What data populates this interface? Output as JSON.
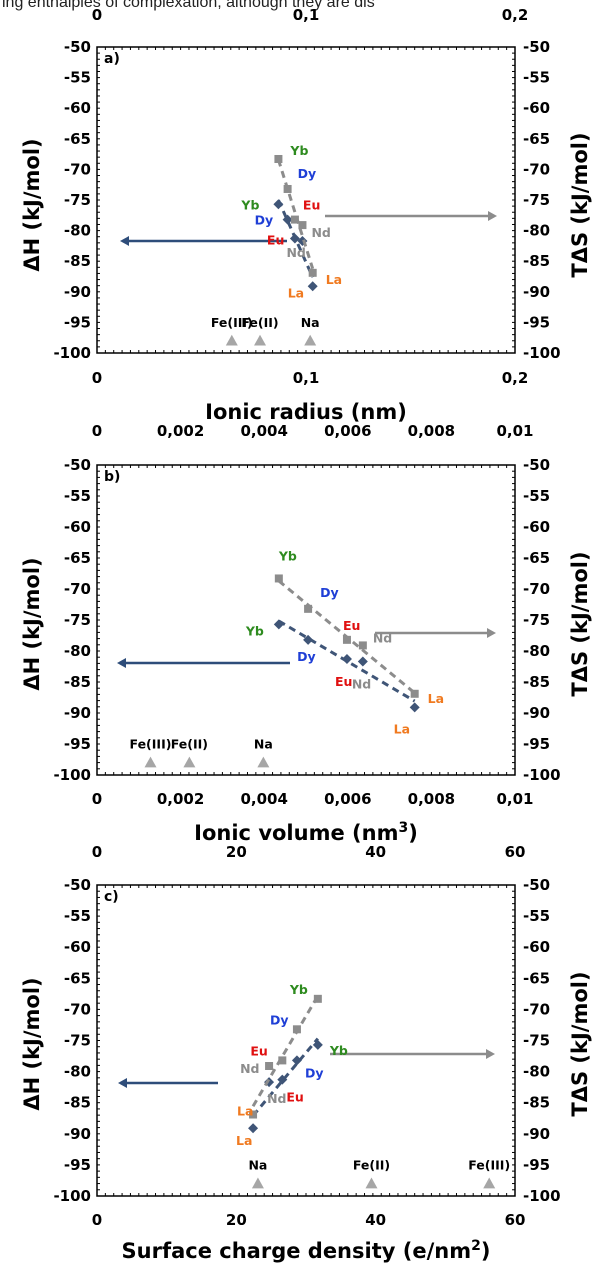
{
  "top_text": "ing enthalpies of complexation, although they are dis",
  "colors": {
    "dH_series": "#3f5577",
    "TdS_series": "#8c8c8c",
    "ion_markers": "#a6a6a6",
    "arrow_left": "#2e4d7a",
    "arrow_right": "#8c8c8c",
    "label_Yb": "#2e8b1f",
    "label_Dy": "#1f3fd6",
    "label_Eu": "#e01010",
    "label_Nd": "#8c8c8c",
    "label_La": "#f07a20",
    "label_other": "#000000"
  },
  "chart_data": [
    {
      "type": "scatter",
      "panel_label": "a)",
      "xlabel": "Ionic radius (nm)",
      "ylabel_left": "ΔH (kJ/mol)",
      "ylabel_right": "TΔS (kJ/mol)",
      "xlim": [
        0,
        0.2
      ],
      "ylim": [
        -100,
        -50
      ],
      "x_ticks": [
        "0",
        "0,1",
        "0,2"
      ],
      "x_top_ticks": [
        "0",
        "0,1",
        "0,2"
      ],
      "y_ticks": [
        "-50",
        "-55",
        "-60",
        "-65",
        "-70",
        "-75",
        "-80",
        "-85",
        "-90",
        "-95",
        "-100"
      ],
      "series": [
        {
          "name": "ΔH",
          "points": [
            {
              "label": "Yb",
              "x": 0.0868,
              "y": -75.7
            },
            {
              "label": "Dy",
              "x": 0.0912,
              "y": -78.2
            },
            {
              "label": "Eu",
              "x": 0.0947,
              "y": -81.3
            },
            {
              "label": "Nd",
              "x": 0.0983,
              "y": -81.7
            },
            {
              "label": "La",
              "x": 0.1032,
              "y": -89.1
            }
          ]
        },
        {
          "name": "TΔS",
          "points": [
            {
              "label": "Yb",
              "x": 0.0868,
              "y": -68.3
            },
            {
              "label": "Dy",
              "x": 0.0912,
              "y": -73.2
            },
            {
              "label": "Eu",
              "x": 0.0947,
              "y": -78.2
            },
            {
              "label": "Nd",
              "x": 0.0983,
              "y": -79.1
            },
            {
              "label": "La",
              "x": 0.1032,
              "y": -86.9
            }
          ]
        }
      ],
      "reference_ions": [
        {
          "label": "Fe(III)",
          "x": 0.0645,
          "y": -98
        },
        {
          "label": "Fe(II)",
          "x": 0.078,
          "y": -98
        },
        {
          "label": "Na",
          "x": 0.102,
          "y": -98
        }
      ]
    },
    {
      "type": "scatter",
      "panel_label": "b)",
      "xlabel": "Ionic volume (nm³)",
      "ylabel_left": "ΔH (kJ/mol)",
      "ylabel_right": "TΔS (kJ/mol)",
      "xlim": [
        0,
        0.01
      ],
      "ylim": [
        -100,
        -50
      ],
      "x_ticks": [
        "0",
        "0,002",
        "0,004",
        "0,006",
        "0,008",
        "0,01"
      ],
      "x_top_ticks": [
        "0",
        "0,002",
        "0,004",
        "0,006",
        "0,008",
        "0,01"
      ],
      "y_ticks": [
        "-50",
        "-55",
        "-60",
        "-65",
        "-70",
        "-75",
        "-80",
        "-85",
        "-90",
        "-95",
        "-100"
      ],
      "series": [
        {
          "name": "ΔH",
          "points": [
            {
              "label": "Yb",
              "x": 0.00435,
              "y": -75.7
            },
            {
              "label": "Dy",
              "x": 0.00505,
              "y": -78.2
            },
            {
              "label": "Eu",
              "x": 0.00598,
              "y": -81.3
            },
            {
              "label": "Nd",
              "x": 0.00636,
              "y": -81.7
            },
            {
              "label": "La",
              "x": 0.0076,
              "y": -89.1
            }
          ]
        },
        {
          "name": "TΔS",
          "points": [
            {
              "label": "Yb",
              "x": 0.00435,
              "y": -68.3
            },
            {
              "label": "Dy",
              "x": 0.00505,
              "y": -73.2
            },
            {
              "label": "Eu",
              "x": 0.00598,
              "y": -78.2
            },
            {
              "label": "Nd",
              "x": 0.00636,
              "y": -79.1
            },
            {
              "label": "La",
              "x": 0.0076,
              "y": -86.9
            }
          ]
        }
      ],
      "reference_ions": [
        {
          "label": "Fe(III)",
          "x": 0.00128,
          "y": -98
        },
        {
          "label": "Fe(II)",
          "x": 0.00221,
          "y": -98
        },
        {
          "label": "Na",
          "x": 0.00398,
          "y": -98
        }
      ]
    },
    {
      "type": "scatter",
      "panel_label": "c)",
      "xlabel": "Surface charge density (e/nm²)",
      "ylabel_left": "ΔH (kJ/mol)",
      "ylabel_right": "TΔS (kJ/mol)",
      "xlim": [
        0,
        60
      ],
      "ylim": [
        -100,
        -50
      ],
      "x_ticks": [
        "0",
        "20",
        "40",
        "60"
      ],
      "x_top_ticks": [
        "0",
        "20",
        "40",
        "60"
      ],
      "y_ticks": [
        "-50",
        "-55",
        "-60",
        "-65",
        "-70",
        "-75",
        "-80",
        "-85",
        "-90",
        "-95",
        "-100"
      ],
      "series": [
        {
          "name": "ΔH",
          "points": [
            {
              "label": "La",
              "x": 22.4,
              "y": -89.1
            },
            {
              "label": "Nd",
              "x": 24.7,
              "y": -81.7
            },
            {
              "label": "Eu",
              "x": 26.6,
              "y": -81.3
            },
            {
              "label": "Dy",
              "x": 28.7,
              "y": -78.2
            },
            {
              "label": "Yb",
              "x": 31.7,
              "y": -75.7
            }
          ]
        },
        {
          "name": "TΔS",
          "points": [
            {
              "label": "La",
              "x": 22.4,
              "y": -86.9
            },
            {
              "label": "Nd",
              "x": 24.7,
              "y": -79.1
            },
            {
              "label": "Eu",
              "x": 26.6,
              "y": -78.2
            },
            {
              "label": "Dy",
              "x": 28.7,
              "y": -73.2
            },
            {
              "label": "Yb",
              "x": 31.7,
              "y": -68.3
            }
          ]
        }
      ],
      "reference_ions": [
        {
          "label": "Na",
          "x": 23.1,
          "y": -98
        },
        {
          "label": "Fe(II)",
          "x": 39.4,
          "y": -98
        },
        {
          "label": "Fe(III)",
          "x": 56.3,
          "y": -98
        }
      ]
    }
  ]
}
